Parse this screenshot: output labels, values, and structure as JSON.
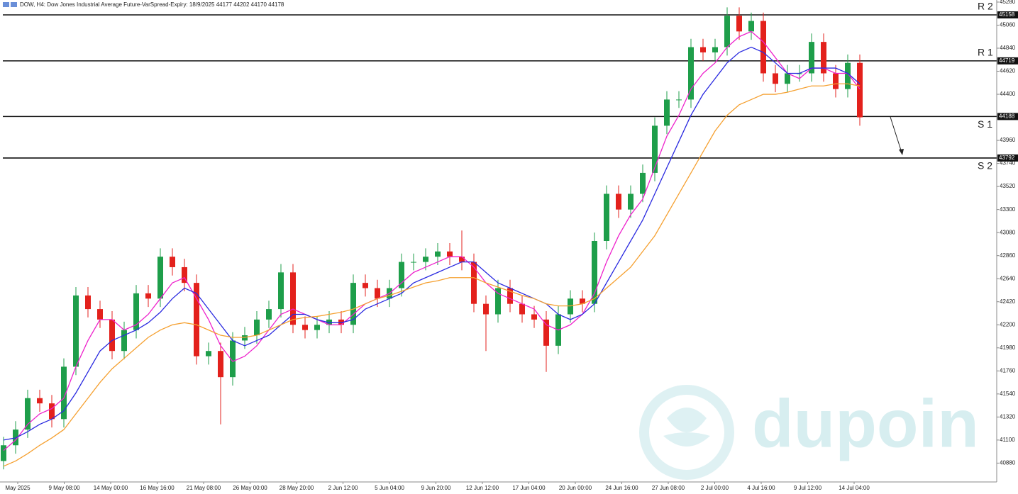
{
  "chart_data": {
    "type": "candlestick",
    "title": "DOW, H4: Dow Jones Industrial Average Future-VarSpread-Expiry: 18/9/2025 44177 44202 44170 44178",
    "watermark": "dupoin",
    "ylim": [
      40700,
      45300
    ],
    "yticks": [
      45280,
      45060,
      44840,
      44620,
      44400,
      43960,
      43740,
      43520,
      43300,
      43080,
      42860,
      42640,
      42420,
      42200,
      41980,
      41760,
      41540,
      41320,
      41100,
      40880
    ],
    "xlabels": [
      "May 2025",
      "9 May 08:00",
      "14 May 00:00",
      "16 May 16:00",
      "21 May 08:00",
      "26 May 00:00",
      "28 May 20:00",
      "2 Jun 12:00",
      "5 Jun 04:00",
      "9 Jun 20:00",
      "12 Jun 12:00",
      "17 Jun 04:00",
      "20 Jun 00:00",
      "24 Jun 16:00",
      "27 Jun 08:00",
      "2 Jul 00:00",
      "4 Jul 16:00",
      "9 Jul 12:00",
      "14 Jul 04:00"
    ],
    "levels": [
      {
        "name": "R 2",
        "value": 45158
      },
      {
        "name": "R 1",
        "value": 44719
      },
      {
        "name": "S 1",
        "value": 44188
      },
      {
        "name": "S 2",
        "value": 43792
      }
    ],
    "up_color": "#1e9e4a",
    "down_color": "#e3211c",
    "candles": {
      "open": [
        40900,
        41050,
        41200,
        41500,
        41450,
        41300,
        41800,
        42480,
        42350,
        42250,
        41950,
        42150,
        42500,
        42450,
        42850,
        42750,
        42600,
        41900,
        41950,
        41700,
        42050,
        42100,
        42250,
        42350,
        42700,
        42200,
        42150,
        42200,
        42250,
        42200,
        42600,
        42550,
        42450,
        42550,
        42800,
        42800,
        42850,
        42900,
        42850,
        42800,
        42400,
        42300,
        42550,
        42400,
        42300,
        42250,
        42000,
        42300,
        42450,
        42400,
        43000,
        43450,
        43300,
        43450,
        43650,
        44100,
        44350,
        44350,
        44850,
        44800,
        44850,
        45150,
        45000,
        45100,
        44600,
        44500,
        44600,
        44600,
        44900,
        44600,
        44450,
        44700
      ],
      "high": [
        41130,
        41280,
        41580,
        41580,
        41530,
        41880,
        42560,
        42560,
        42430,
        42330,
        42230,
        42580,
        42580,
        42930,
        42930,
        42830,
        42680,
        42030,
        42030,
        42130,
        42180,
        42330,
        42430,
        42780,
        42780,
        42280,
        42280,
        42330,
        42330,
        42680,
        42680,
        42630,
        42630,
        42880,
        42880,
        42930,
        42980,
        42980,
        43100,
        42880,
        42480,
        42630,
        42630,
        42480,
        42380,
        42330,
        42380,
        42530,
        42530,
        43080,
        43530,
        43530,
        43530,
        43730,
        44180,
        44430,
        44430,
        44930,
        44930,
        44930,
        45230,
        45230,
        45180,
        45180,
        44680,
        44680,
        44680,
        44980,
        44980,
        44680,
        44780,
        44780
      ],
      "low": [
        40820,
        40970,
        41120,
        41370,
        41220,
        41220,
        41720,
        42270,
        42170,
        41870,
        41870,
        42070,
        42370,
        42370,
        42670,
        42520,
        41820,
        41820,
        41250,
        41620,
        41970,
        42020,
        42170,
        42270,
        42120,
        42070,
        42070,
        42120,
        42120,
        42120,
        42470,
        42370,
        42370,
        42470,
        42720,
        42720,
        42770,
        42770,
        42720,
        42320,
        41950,
        42220,
        42320,
        42220,
        42170,
        41750,
        41920,
        42220,
        42320,
        42320,
        42920,
        43220,
        43220,
        43370,
        43570,
        44020,
        44270,
        44270,
        44720,
        44720,
        44770,
        44920,
        44920,
        44520,
        44420,
        44420,
        44520,
        44520,
        44520,
        44370,
        44370,
        44100
      ],
      "close": [
        41050,
        41200,
        41500,
        41450,
        41300,
        41800,
        42480,
        42350,
        42250,
        41950,
        42150,
        42500,
        42450,
        42850,
        42750,
        42600,
        41900,
        41950,
        41700,
        42050,
        42100,
        42250,
        42350,
        42700,
        42200,
        42150,
        42200,
        42250,
        42200,
        42600,
        42550,
        42450,
        42550,
        42800,
        42800,
        42850,
        42900,
        42850,
        42800,
        42400,
        42300,
        42550,
        42400,
        42300,
        42250,
        42000,
        42300,
        42450,
        42400,
        43000,
        43450,
        43300,
        43450,
        43650,
        44100,
        44350,
        44350,
        44850,
        44800,
        44850,
        45150,
        45000,
        45100,
        44600,
        44500,
        44600,
        44600,
        44900,
        44600,
        44450,
        44700,
        44180
      ]
    },
    "series": [
      {
        "color": "#ee22cc",
        "values": [
          41000,
          41100,
          41250,
          41350,
          41400,
          41500,
          41800,
          42050,
          42250,
          42250,
          42150,
          42200,
          42300,
          42450,
          42600,
          42650,
          42450,
          42250,
          42000,
          41850,
          41900,
          42000,
          42150,
          42300,
          42350,
          42300,
          42250,
          42200,
          42200,
          42300,
          42400,
          42450,
          42500,
          42600,
          42700,
          42750,
          42800,
          42850,
          42850,
          42750,
          42600,
          42500,
          42450,
          42400,
          42350,
          42200,
          42150,
          42200,
          42300,
          42500,
          42800,
          43050,
          43250,
          43400,
          43700,
          44000,
          44200,
          44450,
          44600,
          44700,
          44850,
          44950,
          45000,
          44900,
          44750,
          44600,
          44550,
          44650,
          44650,
          44600,
          44600,
          44450
        ]
      },
      {
        "color": "#2a2ae0",
        "values": [
          41100,
          41120,
          41180,
          41250,
          41300,
          41380,
          41550,
          41750,
          41950,
          42050,
          42100,
          42150,
          42220,
          42320,
          42450,
          42550,
          42500,
          42350,
          42200,
          42050,
          42000,
          42050,
          42100,
          42200,
          42300,
          42300,
          42250,
          42220,
          42220,
          42250,
          42350,
          42400,
          42450,
          42500,
          42600,
          42650,
          42700,
          42750,
          42800,
          42800,
          42700,
          42600,
          42550,
          42500,
          42450,
          42400,
          42300,
          42250,
          42300,
          42400,
          42600,
          42800,
          43000,
          43200,
          43450,
          43700,
          43950,
          44200,
          44400,
          44550,
          44700,
          44800,
          44850,
          44800,
          44700,
          44600,
          44600,
          44650,
          44650,
          44650,
          44600,
          44500
        ]
      },
      {
        "color": "#f5a030",
        "values": [
          40850,
          40900,
          40970,
          41050,
          41120,
          41200,
          41350,
          41500,
          41650,
          41780,
          41880,
          41980,
          42080,
          42150,
          42200,
          42220,
          42200,
          42150,
          42100,
          42080,
          42080,
          42100,
          42150,
          42200,
          42250,
          42270,
          42280,
          42300,
          42320,
          42350,
          42400,
          42450,
          42480,
          42520,
          42560,
          42600,
          42620,
          42650,
          42650,
          42650,
          42600,
          42560,
          42520,
          42480,
          42450,
          42400,
          42380,
          42380,
          42400,
          42450,
          42550,
          42650,
          42750,
          42900,
          43050,
          43250,
          43450,
          43650,
          43850,
          44050,
          44200,
          44300,
          44350,
          44400,
          44400,
          44420,
          44450,
          44480,
          44480,
          44500,
          44500,
          44480
        ]
      }
    ]
  }
}
